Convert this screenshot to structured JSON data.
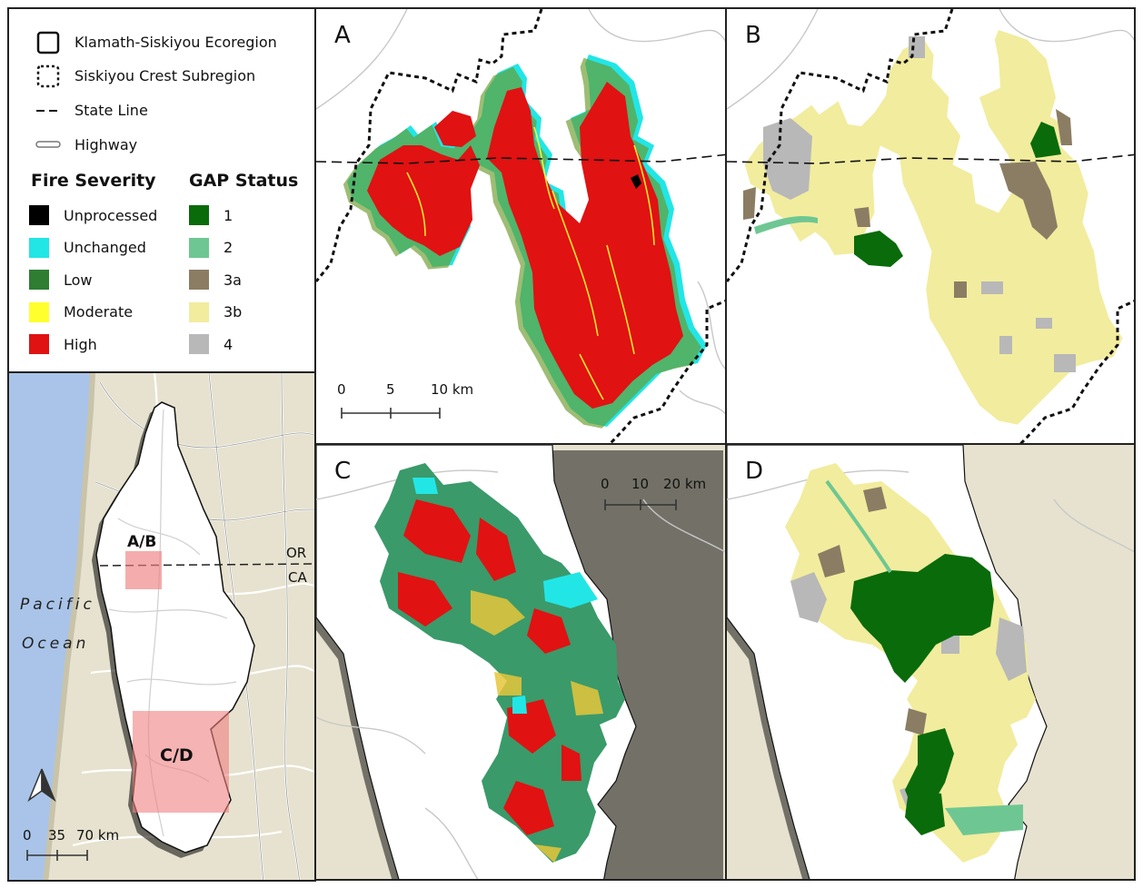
{
  "legend": {
    "lines": [
      {
        "label": "Klamath-Siskiyou Ecoregion",
        "icon": "solid-square-icon"
      },
      {
        "label": "Siskiyou Crest Subregion",
        "icon": "dashed-square-icon"
      },
      {
        "label": "State Line",
        "icon": "dash-line-icon"
      },
      {
        "label": "Highway",
        "icon": "highway-line-icon"
      }
    ],
    "fire_severity": {
      "title": "Fire Severity",
      "items": [
        {
          "label": "Unprocessed",
          "color": "#000000"
        },
        {
          "label": "Unchanged",
          "color": "#22e6e6"
        },
        {
          "label": "Low",
          "color": "#2e7d32"
        },
        {
          "label": "Moderate",
          "color": "#ffff2e"
        },
        {
          "label": "High",
          "color": "#e01212"
        }
      ]
    },
    "gap_status": {
      "title": "GAP Status",
      "items": [
        {
          "label": "1",
          "color": "#0a6b0a"
        },
        {
          "label": "2",
          "color": "#6ec792"
        },
        {
          "label": "3a",
          "color": "#8b7d63"
        },
        {
          "label": "3b",
          "color": "#f2ec9e"
        },
        {
          "label": "4",
          "color": "#b8b8b8"
        }
      ]
    }
  },
  "overview": {
    "ocean_line1": "Pacific",
    "ocean_line2": "Ocean",
    "state_or": "OR",
    "state_ca": "CA",
    "box_ab": "A/B",
    "box_cd": "C/D",
    "scale": [
      "0",
      "35",
      "70 km"
    ],
    "north_icon": "north-arrow-icon",
    "colors": {
      "ocean": "#a9c4e8",
      "land": "#e6e2cf",
      "ecoregion": "#ffffff",
      "inset_box": "#f08080"
    }
  },
  "panels": {
    "a": {
      "letter": "A",
      "scale": [
        "0",
        "5",
        "10 km"
      ]
    },
    "b": {
      "letter": "B"
    },
    "c": {
      "letter": "C",
      "scale": [
        "0",
        "10",
        "20 km"
      ]
    },
    "d": {
      "letter": "D"
    }
  }
}
